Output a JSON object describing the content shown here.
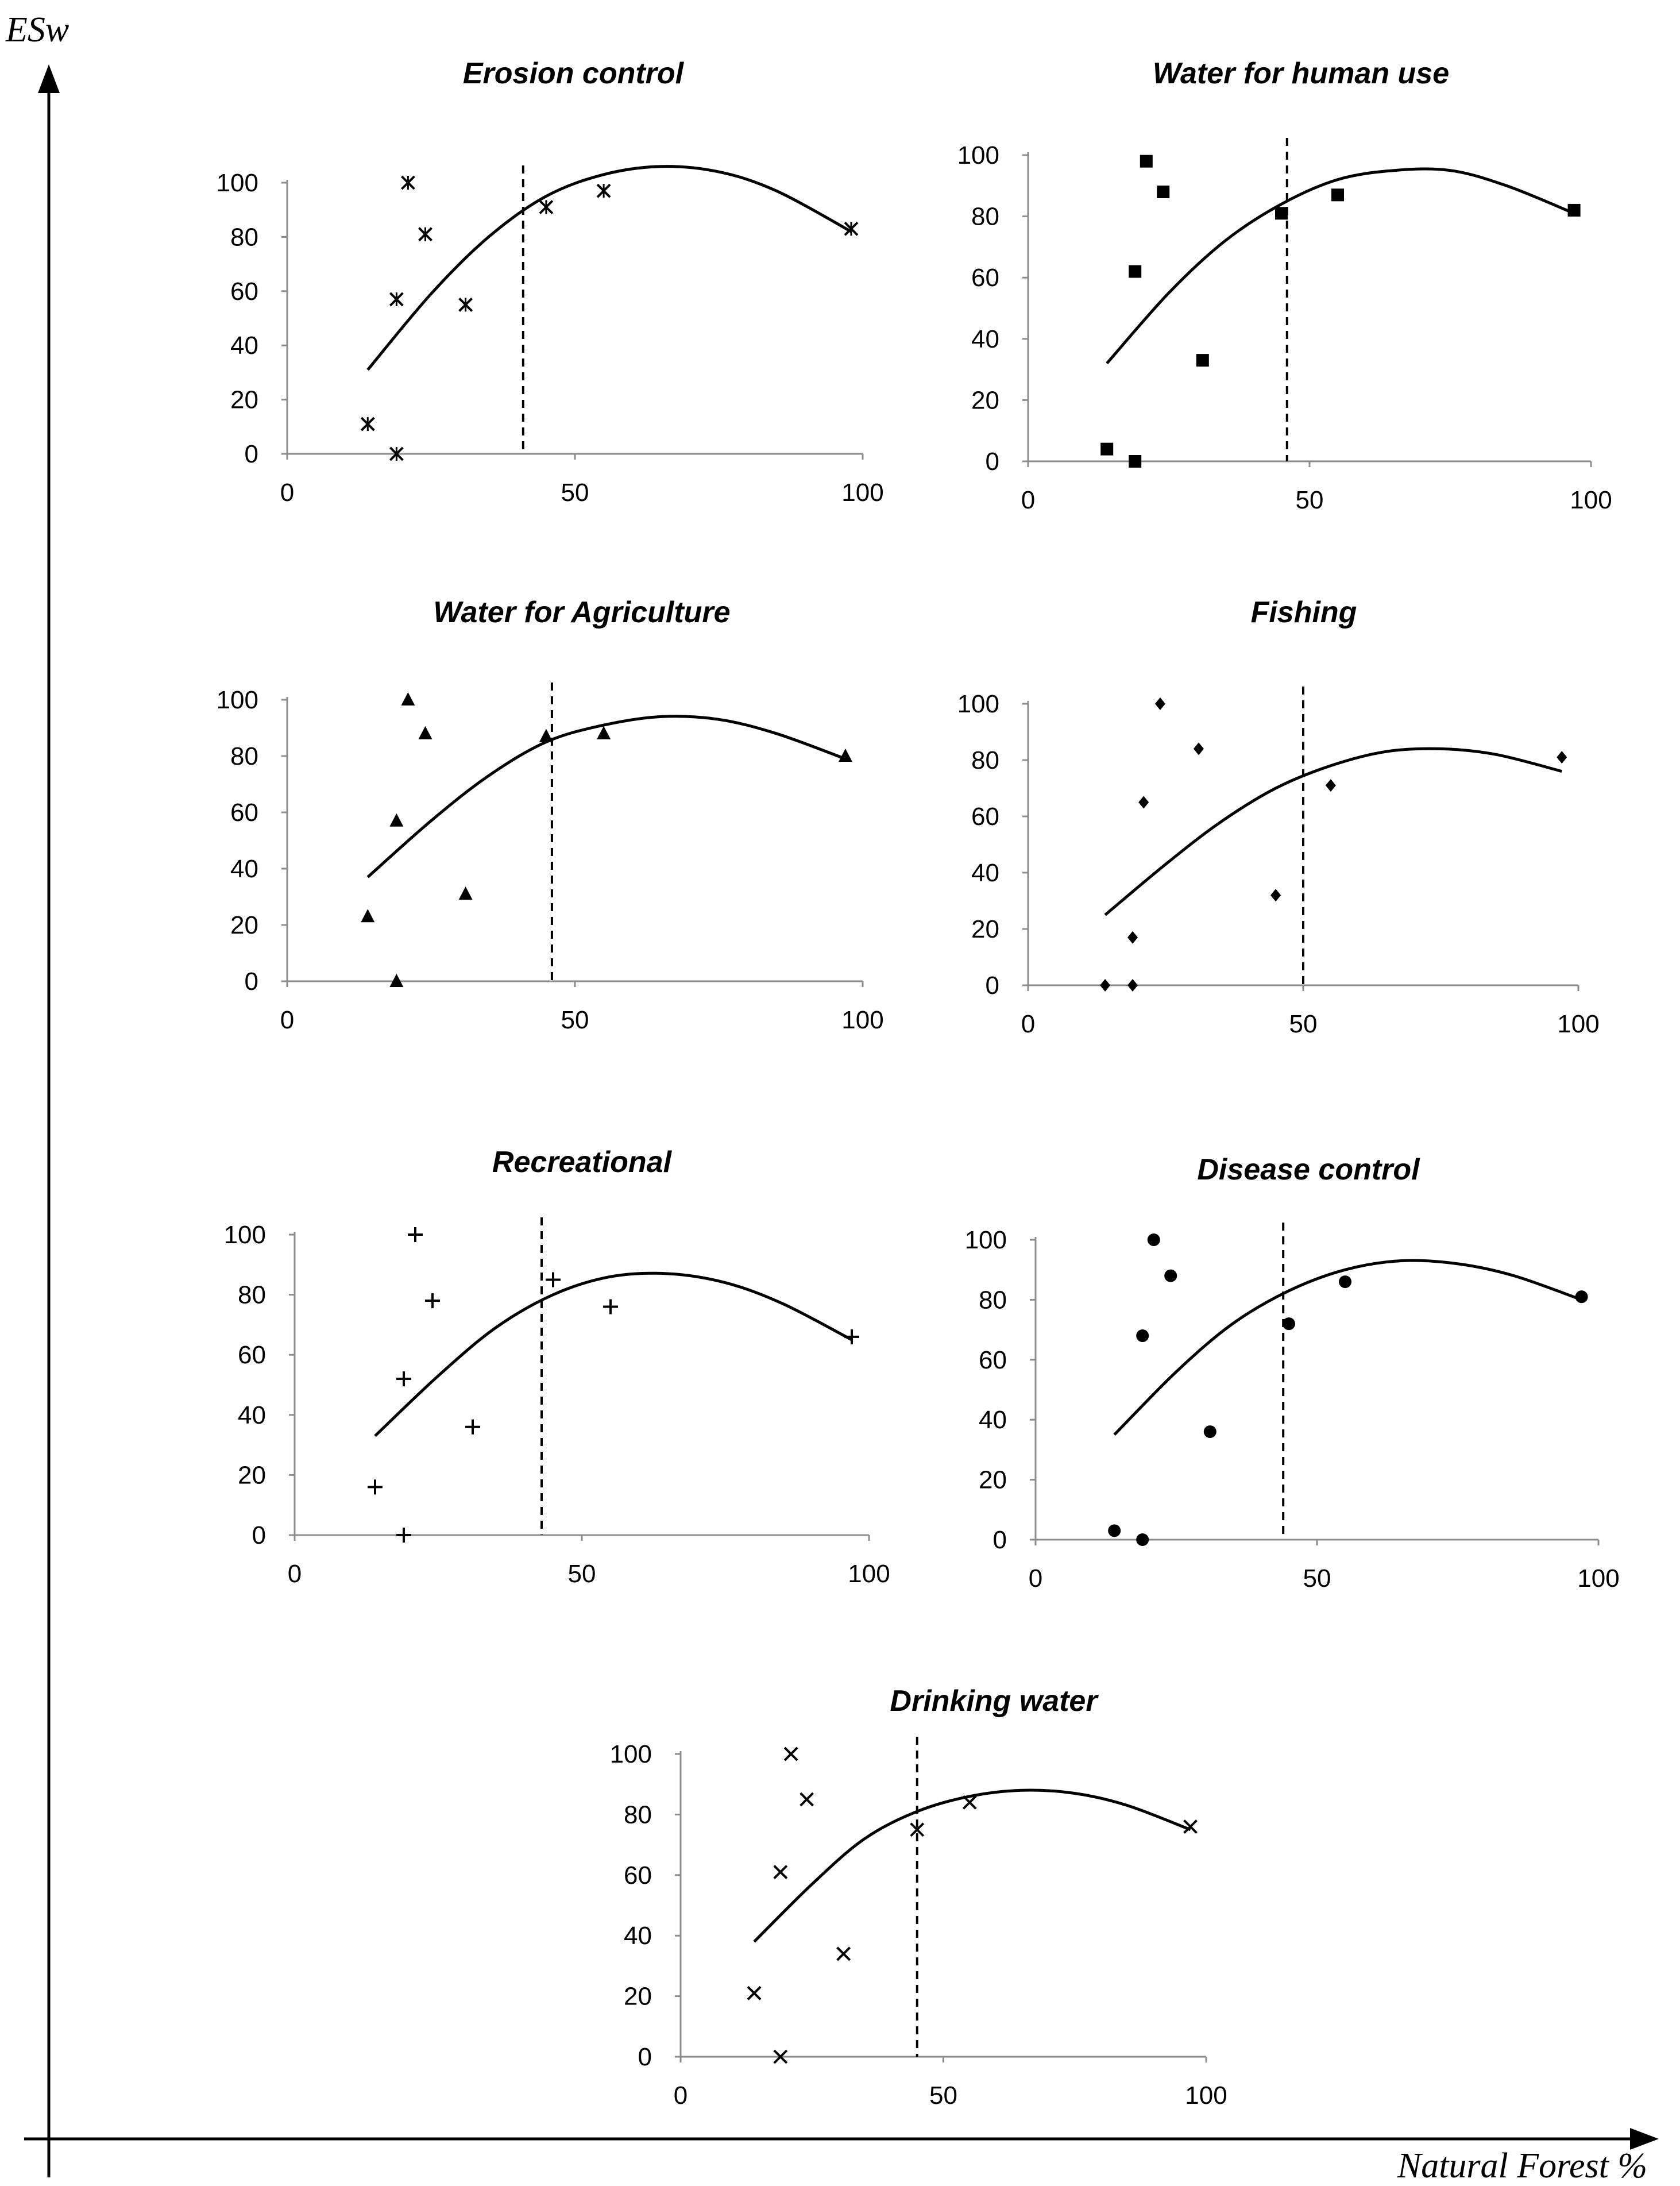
{
  "figure": {
    "y_axis_label": "ESw",
    "x_axis_label": "Natural Forest %"
  },
  "chart_data": [
    {
      "type": "scatter",
      "title": "Erosion control",
      "marker": "asterisk",
      "xlim": [
        0,
        100
      ],
      "ylim": [
        0,
        100
      ],
      "x_ticks": [
        0,
        50,
        100
      ],
      "y_ticks": [
        0,
        20,
        40,
        60,
        80,
        100
      ],
      "points": [
        [
          14,
          11
        ],
        [
          19,
          0
        ],
        [
          19,
          57
        ],
        [
          21,
          100
        ],
        [
          24,
          81
        ],
        [
          31,
          55
        ],
        [
          45,
          91
        ],
        [
          55,
          97
        ],
        [
          98,
          83
        ]
      ],
      "trend": [
        [
          14,
          31
        ],
        [
          25,
          59
        ],
        [
          35,
          80
        ],
        [
          45,
          95
        ],
        [
          55,
          103
        ],
        [
          65,
          106
        ],
        [
          75,
          104
        ],
        [
          85,
          97
        ],
        [
          98,
          82
        ]
      ],
      "threshold_x": 41
    },
    {
      "type": "scatter",
      "title": "Water for human use",
      "marker": "square",
      "xlim": [
        0,
        100
      ],
      "ylim": [
        0,
        100
      ],
      "x_ticks": [
        0,
        50,
        100
      ],
      "y_ticks": [
        0,
        20,
        40,
        60,
        80,
        100
      ],
      "points": [
        [
          14,
          4
        ],
        [
          19,
          0
        ],
        [
          19,
          62
        ],
        [
          21,
          98
        ],
        [
          24,
          88
        ],
        [
          31,
          33
        ],
        [
          45,
          81
        ],
        [
          55,
          87
        ],
        [
          97,
          82
        ]
      ],
      "trend": [
        [
          14,
          32
        ],
        [
          25,
          55
        ],
        [
          35,
          72
        ],
        [
          45,
          84
        ],
        [
          55,
          92
        ],
        [
          65,
          95
        ],
        [
          75,
          95
        ],
        [
          85,
          90
        ],
        [
          97,
          81
        ]
      ],
      "threshold_x": 46
    },
    {
      "type": "scatter",
      "title": "Water for Agriculture",
      "marker": "triangle",
      "xlim": [
        0,
        100
      ],
      "ylim": [
        0,
        100
      ],
      "x_ticks": [
        0,
        50,
        100
      ],
      "y_ticks": [
        0,
        20,
        40,
        60,
        80,
        100
      ],
      "points": [
        [
          14,
          23
        ],
        [
          19,
          0
        ],
        [
          19,
          57
        ],
        [
          21,
          100
        ],
        [
          24,
          88
        ],
        [
          31,
          31
        ],
        [
          45,
          87
        ],
        [
          55,
          88
        ],
        [
          97,
          80
        ]
      ],
      "trend": [
        [
          14,
          37
        ],
        [
          25,
          57
        ],
        [
          35,
          73
        ],
        [
          45,
          85
        ],
        [
          55,
          91
        ],
        [
          65,
          94
        ],
        [
          75,
          93
        ],
        [
          85,
          88
        ],
        [
          97,
          79
        ]
      ],
      "threshold_x": 46
    },
    {
      "type": "scatter",
      "title": "Fishing",
      "marker": "diamond",
      "xlim": [
        0,
        100
      ],
      "ylim": [
        0,
        100
      ],
      "x_ticks": [
        0,
        50,
        100
      ],
      "y_ticks": [
        0,
        20,
        40,
        60,
        80,
        100
      ],
      "points": [
        [
          14,
          0
        ],
        [
          19,
          0
        ],
        [
          19,
          17
        ],
        [
          21,
          65
        ],
        [
          24,
          100
        ],
        [
          31,
          84
        ],
        [
          45,
          32
        ],
        [
          55,
          71
        ],
        [
          97,
          81
        ]
      ],
      "trend": [
        [
          14,
          25
        ],
        [
          25,
          43
        ],
        [
          35,
          58
        ],
        [
          45,
          70
        ],
        [
          55,
          78
        ],
        [
          65,
          83
        ],
        [
          75,
          84
        ],
        [
          85,
          82
        ],
        [
          97,
          76
        ]
      ],
      "threshold_x": 50
    },
    {
      "type": "scatter",
      "title": "Recreational",
      "marker": "plus",
      "xlim": [
        0,
        100
      ],
      "ylim": [
        0,
        100
      ],
      "x_ticks": [
        0,
        50,
        100
      ],
      "y_ticks": [
        0,
        20,
        40,
        60,
        80,
        100
      ],
      "points": [
        [
          14,
          16
        ],
        [
          19,
          0
        ],
        [
          19,
          52
        ],
        [
          21,
          100
        ],
        [
          24,
          78
        ],
        [
          31,
          36
        ],
        [
          45,
          85
        ],
        [
          55,
          76
        ],
        [
          97,
          66
        ]
      ],
      "trend": [
        [
          14,
          33
        ],
        [
          25,
          53
        ],
        [
          35,
          69
        ],
        [
          45,
          80
        ],
        [
          55,
          86
        ],
        [
          65,
          87
        ],
        [
          75,
          84
        ],
        [
          85,
          77
        ],
        [
          97,
          65
        ]
      ],
      "threshold_x": 43
    },
    {
      "type": "scatter",
      "title": "Disease control",
      "marker": "circle",
      "xlim": [
        0,
        100
      ],
      "ylim": [
        0,
        100
      ],
      "x_ticks": [
        0,
        50,
        100
      ],
      "y_ticks": [
        0,
        20,
        40,
        60,
        80,
        100
      ],
      "points": [
        [
          14,
          3
        ],
        [
          19,
          68
        ],
        [
          19,
          0
        ],
        [
          21,
          100
        ],
        [
          24,
          88
        ],
        [
          31,
          36
        ],
        [
          45,
          72
        ],
        [
          55,
          86
        ],
        [
          97,
          81
        ]
      ],
      "trend": [
        [
          14,
          35
        ],
        [
          25,
          56
        ],
        [
          35,
          72
        ],
        [
          45,
          83
        ],
        [
          55,
          90
        ],
        [
          65,
          93
        ],
        [
          75,
          92
        ],
        [
          85,
          88
        ],
        [
          97,
          80
        ]
      ],
      "threshold_x": 44
    },
    {
      "type": "scatter",
      "title": "Drinking water",
      "marker": "x",
      "xlim": [
        0,
        100
      ],
      "ylim": [
        0,
        100
      ],
      "x_ticks": [
        0,
        50,
        100
      ],
      "y_ticks": [
        0,
        20,
        40,
        60,
        80,
        100
      ],
      "points": [
        [
          14,
          21
        ],
        [
          19,
          0
        ],
        [
          19,
          61
        ],
        [
          21,
          100
        ],
        [
          24,
          85
        ],
        [
          31,
          34
        ],
        [
          45,
          75
        ],
        [
          55,
          84
        ],
        [
          97,
          76
        ]
      ],
      "trend": [
        [
          14,
          38
        ],
        [
          25,
          57
        ],
        [
          35,
          72
        ],
        [
          45,
          81
        ],
        [
          55,
          86
        ],
        [
          65,
          88
        ],
        [
          75,
          87
        ],
        [
          85,
          83
        ],
        [
          97,
          75
        ]
      ],
      "threshold_x": 45
    }
  ]
}
